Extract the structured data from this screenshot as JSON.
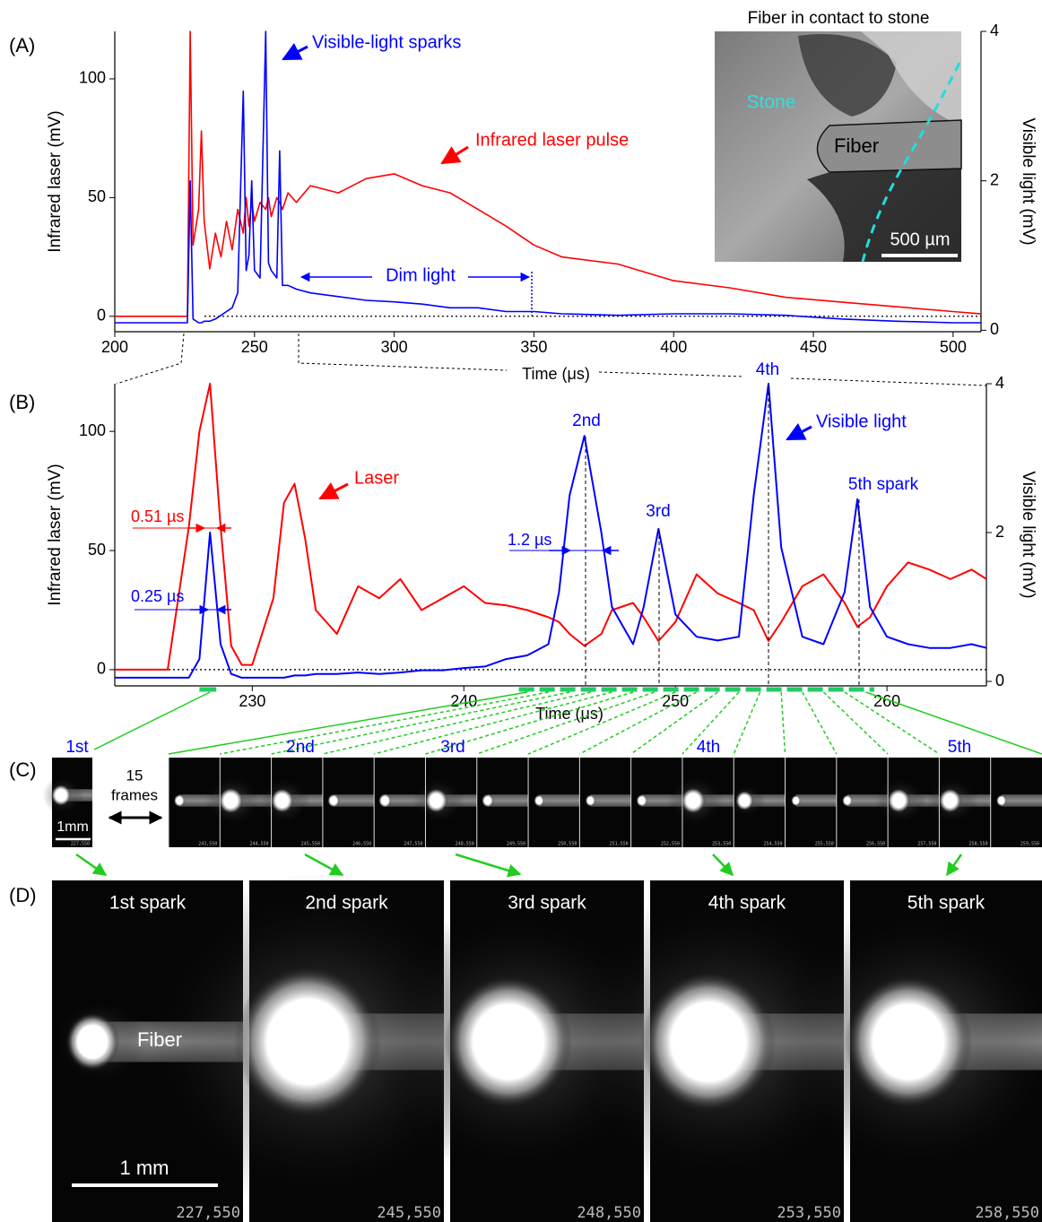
{
  "panel_labels": [
    "(A)",
    "(B)",
    "(C)",
    "(D)"
  ],
  "chart_data": [
    {
      "type": "line",
      "x_label": "Time (μs)",
      "y_label": "Infrared laser (mV)",
      "y2_label": "Visible light (mV)",
      "xlim": [
        200,
        510
      ],
      "xticks": [
        200,
        250,
        300,
        350,
        400,
        450,
        500
      ],
      "ylim": [
        -6.5,
        120
      ],
      "yticks": [
        0,
        50,
        100
      ],
      "y2lim": [
        -0.02,
        4
      ],
      "y2ticks": [
        0,
        2,
        4
      ],
      "x": [
        200,
        210,
        220,
        226,
        227,
        228,
        230,
        231,
        232,
        234,
        236,
        238,
        240,
        242,
        244,
        246,
        247,
        248,
        249,
        250,
        252,
        254,
        255,
        256,
        258,
        259,
        260,
        262,
        265,
        270,
        280,
        290,
        300,
        310,
        320,
        330,
        340,
        350,
        360,
        380,
        400,
        420,
        440,
        460,
        480,
        500,
        510
      ],
      "series": [
        {
          "color": "#ff0000",
          "values": [
            0,
            0,
            0,
            0,
            120,
            30,
            45,
            78,
            40,
            20,
            35,
            25,
            40,
            28,
            45,
            35,
            50,
            38,
            48,
            40,
            48,
            45,
            50,
            42,
            50,
            48,
            45,
            52,
            48,
            55,
            52,
            58,
            60,
            55,
            52,
            45,
            38,
            30,
            25,
            22,
            15,
            12,
            8,
            6,
            4,
            2,
            1
          ]
        },
        {
          "color": "#0000ff",
          "axis": "y2",
          "values": [
            0.1,
            0.1,
            0.1,
            0.1,
            2.0,
            0.15,
            0.1,
            0.1,
            0.12,
            0.12,
            0.15,
            0.2,
            0.25,
            0.3,
            0.5,
            3.2,
            0.8,
            1.0,
            2.0,
            0.8,
            0.7,
            4.0,
            0.9,
            0.8,
            0.7,
            2.4,
            0.6,
            0.6,
            0.55,
            0.5,
            0.45,
            0.4,
            0.38,
            0.35,
            0.3,
            0.3,
            0.25,
            0.25,
            0.22,
            0.2,
            0.22,
            0.22,
            0.2,
            0.15,
            0.12,
            0.1,
            0.1
          ]
        }
      ],
      "annotations": [
        "Visible-light sparks",
        "Infrared laser pulse",
        "Dim light"
      ]
    },
    {
      "type": "line",
      "x_label": "Time (μs)",
      "y_label": "Infrared laser (mV)",
      "y2_label": "Visible light (mV)",
      "xlim": [
        223.5,
        264.7
      ],
      "xticks": [
        230,
        240,
        250,
        260
      ],
      "ylim": [
        -6.8,
        120
      ],
      "yticks": [
        0,
        50,
        100
      ],
      "y2lim": [
        -0.06,
        4
      ],
      "y2ticks": [
        0,
        2,
        4
      ],
      "x": [
        223.5,
        225,
        226,
        227,
        227.5,
        228,
        228.5,
        229,
        229.5,
        230,
        231,
        231.5,
        232,
        232.5,
        233,
        234,
        235,
        236,
        237,
        238,
        239,
        240,
        241,
        242,
        243,
        244,
        244.5,
        245,
        245.7,
        246.5,
        247,
        248,
        248.5,
        249.2,
        250,
        251,
        252,
        253,
        253.7,
        254.4,
        255,
        256,
        257,
        258,
        258.6,
        259.2,
        260,
        261,
        262,
        263,
        264,
        264.7
      ],
      "series": [
        {
          "color": "#ff0000",
          "values": [
            0,
            0,
            0,
            60,
            100,
            120,
            60,
            10,
            2,
            2,
            30,
            70,
            78,
            55,
            25,
            15,
            35,
            30,
            38,
            25,
            30,
            35,
            28,
            27,
            25,
            22,
            20,
            15,
            10,
            15,
            25,
            28,
            22,
            12,
            20,
            40,
            32,
            28,
            25,
            12,
            20,
            35,
            40,
            28,
            18,
            22,
            35,
            45,
            42,
            38,
            42,
            38
          ]
        },
        {
          "color": "#0000ff",
          "axis": "y2",
          "values": [
            0.05,
            0.05,
            0.05,
            0.05,
            0.3,
            2.0,
            0.5,
            0.1,
            0.05,
            0.05,
            0.05,
            0.05,
            0.08,
            0.08,
            0.1,
            0.1,
            0.12,
            0.1,
            0.12,
            0.15,
            0.15,
            0.18,
            0.2,
            0.3,
            0.35,
            0.5,
            1.2,
            2.5,
            3.3,
            2.0,
            1.0,
            0.5,
            1.0,
            2.05,
            0.9,
            0.6,
            0.55,
            0.6,
            2.5,
            4.0,
            1.8,
            0.6,
            0.5,
            1.2,
            2.45,
            1.0,
            0.6,
            0.5,
            0.45,
            0.45,
            0.5,
            0.45
          ]
        }
      ],
      "annotations": [
        "Laser",
        "Visible light",
        "2nd",
        "3rd",
        "4th",
        "5th spark",
        "0.51 µs",
        "0.25 µs",
        "1.2 µs"
      ]
    }
  ],
  "inset": {
    "title": "Fiber in contact to stone",
    "stone": "Stone",
    "fiber": "Fiber",
    "scale": "500 µm"
  },
  "frames": {
    "spark_labels": [
      "1st",
      "2nd",
      "3rd",
      "4th",
      "5th"
    ],
    "gap": [
      "15",
      "frames"
    ],
    "scale": "1mm",
    "timestamps": [
      "227,550",
      "243,550",
      "244,550",
      "245,550",
      "246,550",
      "247,550",
      "248,550",
      "249,550",
      "250,550",
      "251,550",
      "252,550",
      "253,550",
      "254,550",
      "255,550",
      "256,550",
      "257,550",
      "258,550",
      "259,550"
    ]
  },
  "sparks": {
    "titles": [
      "1st spark",
      "2nd spark",
      "3rd spark",
      "4th spark",
      "5th spark"
    ],
    "fiber": "Fiber",
    "scale": "1 mm",
    "timestamps": [
      "227,550",
      "245,550",
      "248,550",
      "253,550",
      "258,550"
    ]
  }
}
